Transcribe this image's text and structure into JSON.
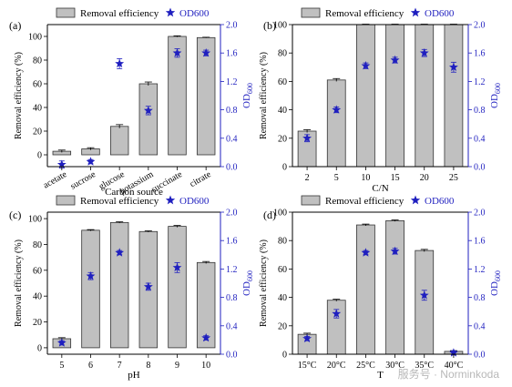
{
  "watermark": "服务号 · Norminkoda",
  "colors": {
    "bar": "#c0c0c0",
    "bar_stroke": "#333333",
    "axis": "#000000",
    "od_axis": "#1f1fbf",
    "star": "#1f1fbf"
  },
  "chart_data": [
    {
      "panel": "(a)",
      "type": "bar",
      "legend_bar": "Removal efficiency",
      "legend_star": "OD600",
      "xlabel": "Carbon source",
      "ylabel": "Removal efficiency (%)",
      "y2label_main": "OD",
      "y2label_sub": "600",
      "categories": [
        "acetate",
        "sucrose",
        "glucose",
        "potassium",
        "succinate",
        "citrate"
      ],
      "rotate_ticks": true,
      "ylim": [
        -10,
        110
      ],
      "yticks": [
        "0",
        "20",
        "40",
        "60",
        "80",
        "100"
      ],
      "y2lim": [
        0,
        2.0
      ],
      "y2ticks": [
        "0.0",
        "0.4",
        "0.8",
        "1.2",
        "1.6",
        "2.0"
      ],
      "removal": [
        3,
        5,
        24,
        60,
        100,
        99
      ],
      "removal_err": [
        1,
        1,
        1.5,
        1.5,
        0.5,
        0.3
      ],
      "od600": [
        0.03,
        0.07,
        1.45,
        0.79,
        1.6,
        1.6
      ],
      "od600_err": [
        0.05,
        0.03,
        0.07,
        0.06,
        0.06,
        0.04
      ]
    },
    {
      "panel": "(b)",
      "type": "bar",
      "legend_bar": "Removal efficiency",
      "legend_star": "OD600",
      "xlabel": "C/N",
      "ylabel": "Removal efficiency (%)",
      "y2label_main": "OD",
      "y2label_sub": "600",
      "categories": [
        "2",
        "5",
        "10",
        "15",
        "20",
        "25"
      ],
      "rotate_ticks": false,
      "ylim": [
        0,
        100
      ],
      "yticks": [
        "0",
        "20",
        "40",
        "60",
        "80",
        "100"
      ],
      "y2lim": [
        0,
        2.0
      ],
      "y2ticks": [
        "0.0",
        "0.4",
        "0.8",
        "1.2",
        "1.6",
        "2.0"
      ],
      "removal": [
        25,
        61,
        100,
        100,
        100,
        100
      ],
      "removal_err": [
        1,
        1,
        0.3,
        0.3,
        0.3,
        0.3
      ],
      "od600": [
        0.4,
        0.8,
        1.42,
        1.5,
        1.6,
        1.4
      ],
      "od600_err": [
        0.05,
        0.04,
        0.04,
        0.04,
        0.05,
        0.07
      ]
    },
    {
      "panel": "(c)",
      "type": "bar",
      "legend_bar": "Removal efficiency",
      "legend_star": "OD600",
      "xlabel": "pH",
      "ylabel": "Removal efficiency (%)",
      "y2label_main": "OD",
      "y2label_sub": "600",
      "categories": [
        "5",
        "6",
        "7",
        "8",
        "9",
        "10"
      ],
      "rotate_ticks": false,
      "ylim": [
        -5,
        105
      ],
      "yticks": [
        "0",
        "20",
        "40",
        "60",
        "80",
        "100"
      ],
      "y2lim": [
        0,
        2.0
      ],
      "y2ticks": [
        "0.0",
        "0.4",
        "0.8",
        "1.2",
        "1.6",
        "2.0"
      ],
      "removal": [
        7,
        91,
        97,
        90,
        94,
        66
      ],
      "removal_err": [
        0.8,
        0.5,
        0.5,
        0.5,
        0.7,
        0.8
      ],
      "od600": [
        0.16,
        1.1,
        1.43,
        0.95,
        1.22,
        0.23
      ],
      "od600_err": [
        0.03,
        0.05,
        0.03,
        0.05,
        0.07,
        0.03
      ]
    },
    {
      "panel": "(d)",
      "type": "bar",
      "legend_bar": "Removal efficiency",
      "legend_star": "OD600",
      "xlabel": "T",
      "ylabel": "Removal efficiency (%)",
      "y2label_main": "OD",
      "y2label_sub": "600",
      "categories": [
        "15°C",
        "20°C",
        "25°C",
        "30°C",
        "35°C",
        "40°C"
      ],
      "rotate_ticks": false,
      "ylim": [
        0,
        100
      ],
      "yticks": [
        "0",
        "20",
        "40",
        "60",
        "80",
        "100"
      ],
      "y2lim": [
        0,
        2.0
      ],
      "y2ticks": [
        "0.0",
        "0.4",
        "0.8",
        "1.2",
        "1.6",
        "2.0"
      ],
      "removal": [
        14,
        38,
        91,
        94,
        73,
        2
      ],
      "removal_err": [
        0.8,
        0.7,
        0.6,
        0.5,
        0.8,
        0.5
      ],
      "od600": [
        0.22,
        0.57,
        1.43,
        1.45,
        0.83,
        0.02
      ],
      "od600_err": [
        0.03,
        0.06,
        0.03,
        0.04,
        0.07,
        0.03
      ]
    }
  ]
}
